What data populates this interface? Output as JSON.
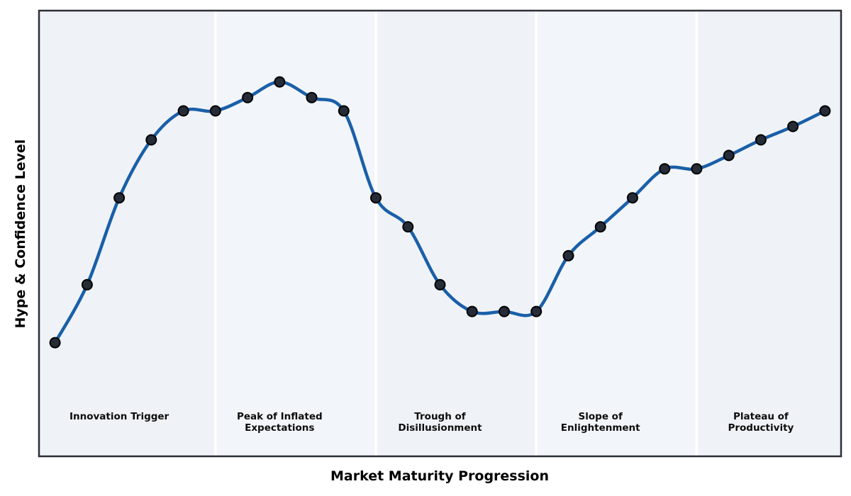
{
  "chart_data": {
    "type": "line",
    "title": "",
    "xlabel": "Market Maturity Progression",
    "ylabel": "Hype & Confidence Level",
    "x": [
      0,
      1,
      2,
      3,
      4,
      5,
      6,
      7,
      8,
      9,
      10,
      11,
      12,
      13,
      14,
      15,
      16,
      17,
      18,
      19,
      20,
      21,
      22,
      23,
      24
    ],
    "series": [
      {
        "name": "Hype & Confidence",
        "values": [
          25.5,
          38.5,
          58,
          71,
          77.5,
          77.5,
          80.5,
          84,
          80.5,
          77.5,
          58,
          51.5,
          38.5,
          32.5,
          32.5,
          32.5,
          45,
          51.5,
          58,
          64.5,
          64.5,
          67.5,
          71,
          74,
          77.5
        ]
      }
    ],
    "xlim": [
      -0.5,
      24.5
    ],
    "ylim": [
      0,
      100
    ],
    "grid": false,
    "legend": false,
    "ticks": "none",
    "styles": {
      "line_color": "#1a5fa8",
      "line_width": 4.5,
      "marker_fill": "#252c38",
      "marker_edge": "#000000",
      "marker_radius": 7,
      "marker_edge_width": 2,
      "plot_border_color": "#2b2f36",
      "plot_border_width": 2.5,
      "band_divider_color": "#ffffff",
      "band_divider_width": 3.5,
      "band_fills": [
        "#eff3f7",
        "#f2f5f9",
        "#eff3f7",
        "#f2f5f9",
        "#eff3f7"
      ],
      "page_background": "#ffffff"
    },
    "phases": [
      {
        "label": "Innovation Trigger",
        "x_center": 2,
        "span": [
          -0.5,
          5
        ]
      },
      {
        "label": "Peak of Inflated\nExpectations",
        "x_center": 7,
        "span": [
          5,
          10
        ]
      },
      {
        "label": "Trough of\nDisillusionment",
        "x_center": 12,
        "span": [
          10,
          15
        ]
      },
      {
        "label": "Slope of\nEnlightenment",
        "x_center": 17,
        "span": [
          15,
          20
        ]
      },
      {
        "label": "Plateau of\nProductivity",
        "x_center": 22,
        "span": [
          20,
          24.5
        ]
      }
    ]
  }
}
